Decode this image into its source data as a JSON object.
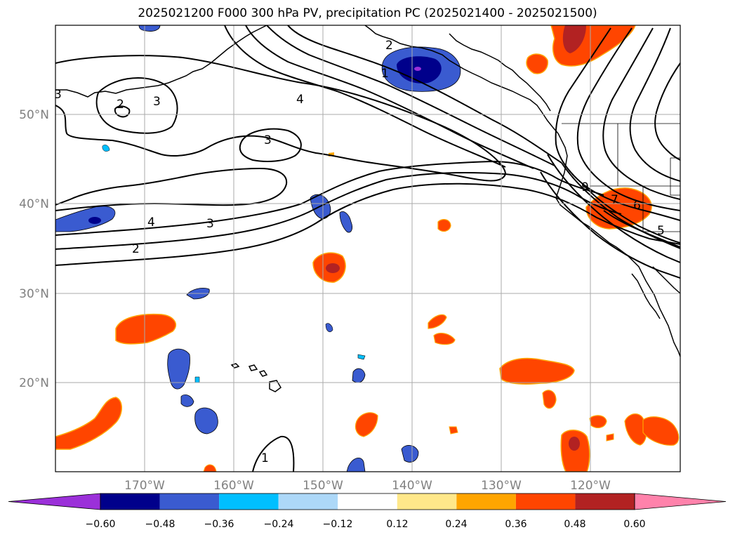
{
  "title": "2025021200 F000 300 hPa PV, precipitation PC (2025021400 - 2025021500)",
  "map": {
    "lat_ticks": [
      "50°N",
      "40°N",
      "30°N",
      "20°N"
    ],
    "lon_ticks": [
      "170°W",
      "160°W",
      "150°W",
      "140°W",
      "130°W",
      "120°W"
    ],
    "grid_color": "#aaaaaa",
    "coastline_color": "#000000"
  },
  "pv_contour_labels": [
    "2",
    "3",
    "4",
    "3",
    "1",
    "2",
    "3",
    "4",
    "2",
    "3",
    "1",
    "9",
    "7",
    "6",
    "5"
  ],
  "colorbar": {
    "tick_labels": [
      "−0.60",
      "−0.48",
      "−0.36",
      "−0.24",
      "−0.12",
      "0.12",
      "0.24",
      "0.36",
      "0.48",
      "0.60"
    ],
    "colors": [
      "#9b30d9",
      "#00008b",
      "#3a5bd0",
      "#00bfff",
      "#add8f8",
      "#ffffff",
      "#ffe88a",
      "#ffa500",
      "#ff4500",
      "#b22222",
      "#ff82ab"
    ]
  }
}
